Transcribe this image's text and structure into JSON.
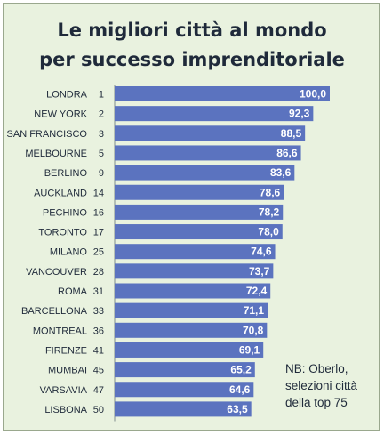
{
  "chart_data": {
    "type": "bar",
    "orientation": "horizontal",
    "title_lines": [
      "Le migliori città al mondo",
      "per successo imprenditoriale"
    ],
    "categories": [
      "LONDRA",
      "NEW YORK",
      "SAN FRANCISCO",
      "MELBOURNE",
      "BERLINO",
      "AUCKLAND",
      "PECHINO",
      "TORONTO",
      "MILANO",
      "VANCOUVER",
      "ROMA",
      "BARCELLONA",
      "MONTREAL",
      "FIRENZE",
      "MUMBAI",
      "VARSAVIA",
      "LISBONA"
    ],
    "ranks": [
      "1",
      "2",
      "3",
      "5",
      "9",
      "14",
      "16",
      "17",
      "25",
      "28",
      "31",
      "33",
      "36",
      "41",
      "45",
      "47",
      "50"
    ],
    "values": [
      100.0,
      92.3,
      88.5,
      86.6,
      83.6,
      78.6,
      78.2,
      78.0,
      74.6,
      73.7,
      72.4,
      71.1,
      70.8,
      69.1,
      65.2,
      64.6,
      63.5
    ],
    "value_labels": [
      "100,0",
      "92,3",
      "88,5",
      "86,6",
      "83,6",
      "78,6",
      "78,2",
      "78,0",
      "74,6",
      "73,7",
      "72,4",
      "71,1",
      "70,8",
      "69,1",
      "65,2",
      "64,6",
      "63,5"
    ],
    "xlim": [
      0,
      100
    ],
    "grid": false,
    "bar_color": "#5b73bf",
    "note_lines": [
      "NB: Oberlo,",
      "selezioni città",
      "della top 75"
    ]
  }
}
